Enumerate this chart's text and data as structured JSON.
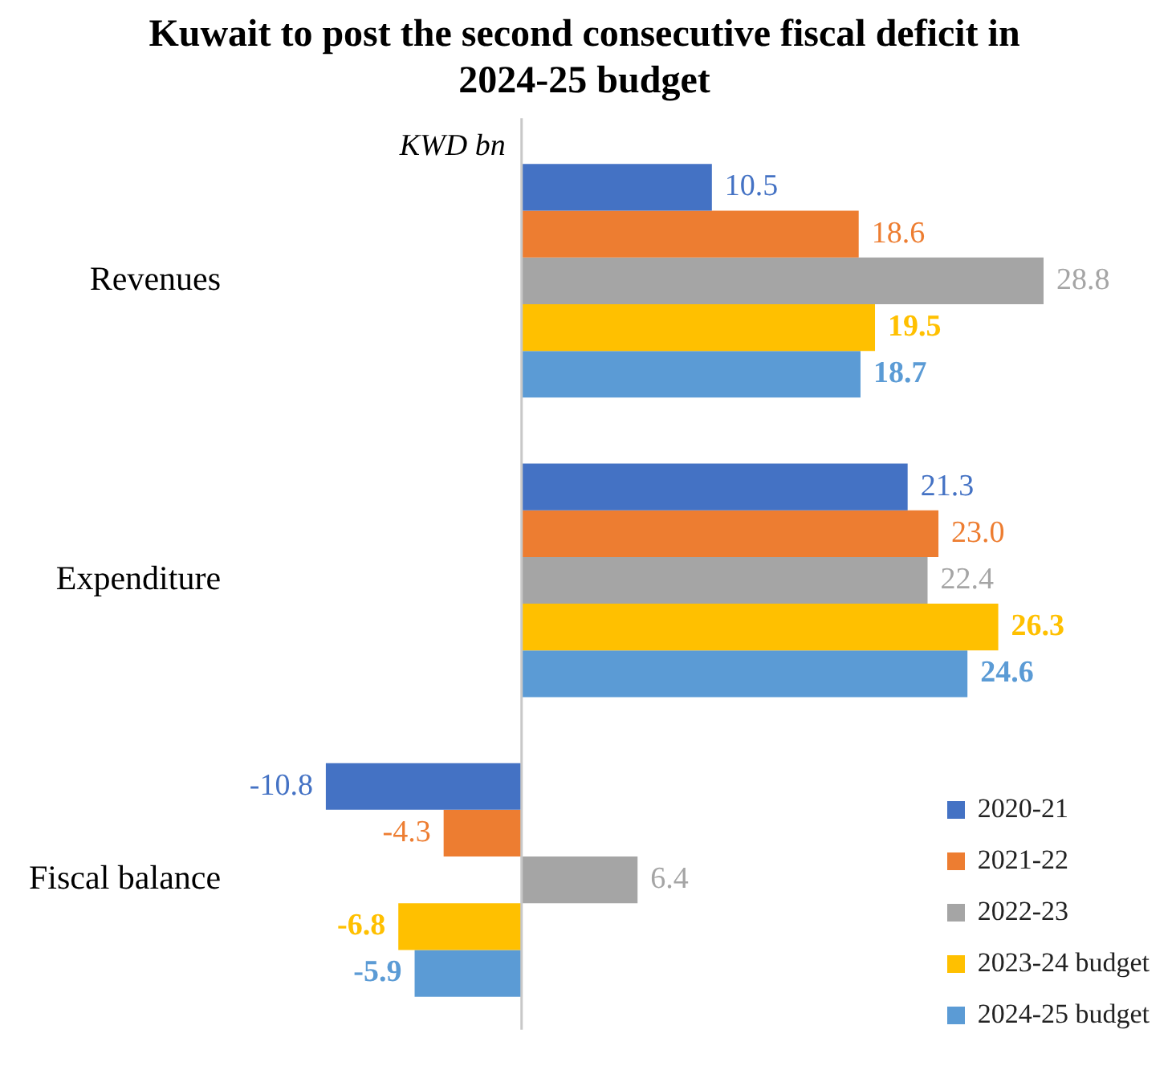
{
  "chart_data": {
    "type": "bar",
    "orientation": "horizontal",
    "title": "Kuwait to post the second consecutive fiscal deficit in 2024-25 budget",
    "annotations": [
      "KWD bn"
    ],
    "categories": [
      "Revenues",
      "Expenditure",
      "Fiscal balance"
    ],
    "series": [
      {
        "name": "2020-21",
        "color": "#4472c4",
        "values": [
          10.5,
          21.3,
          -10.8
        ],
        "value_labels": [
          "10.5",
          "21.3",
          "-10.8"
        ]
      },
      {
        "name": "2021-22",
        "color": "#ed7d31",
        "values": [
          18.6,
          23.0,
          -4.3
        ],
        "value_labels": [
          "18.6",
          "23.0",
          "-4.3"
        ]
      },
      {
        "name": "2022-23",
        "color": "#a5a5a5",
        "values": [
          28.8,
          22.4,
          6.4
        ],
        "value_labels": [
          "28.8",
          "22.4",
          "6.4"
        ]
      },
      {
        "name": "2023-24 budget",
        "color": "#ffc000",
        "values": [
          19.5,
          26.3,
          -6.8
        ],
        "value_labels": [
          "19.5",
          "26.3",
          "-6.8"
        ]
      },
      {
        "name": "2024-25 budget",
        "color": "#5b9bd5",
        "values": [
          18.7,
          24.6,
          -5.9
        ],
        "value_labels": [
          "18.7",
          "24.6",
          "-5.9"
        ]
      }
    ],
    "tick_labels": "y",
    "legend": "bottom right"
  }
}
